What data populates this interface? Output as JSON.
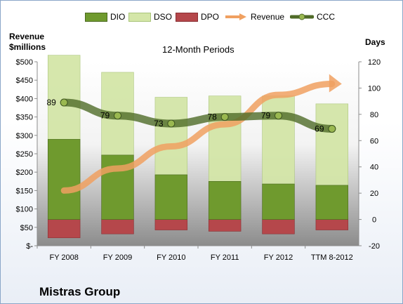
{
  "company": "Mistras Group",
  "chart_data": {
    "type": "bar",
    "title": "12-Month Periods",
    "ylabel": "Revenue\n$millions",
    "y2label": "Days",
    "categories": [
      "FY 2008",
      "FY 2009",
      "FY 2010",
      "FY 2011",
      "FY 2012",
      "TTM 8-2012"
    ],
    "ylim": [
      0,
      500
    ],
    "y_ticks": [
      "$-",
      "$50",
      "$100",
      "$150",
      "$200",
      "$250",
      "$300",
      "$350",
      "$400",
      "$450",
      "$500"
    ],
    "y2lim": [
      -20,
      120
    ],
    "y2_ticks": [
      "-20",
      "0",
      "20",
      "40",
      "60",
      "80",
      "100",
      "120"
    ],
    "series": [
      {
        "name": "DIO",
        "axis": "days",
        "color": "#6f9a2e",
        "values": [
          61,
          49,
          34,
          29,
          27,
          26
        ]
      },
      {
        "name": "DSO",
        "axis": "days",
        "color": "#d4e6a8",
        "values": [
          64,
          63,
          59,
          65,
          67,
          62
        ]
      },
      {
        "name": "DPO",
        "axis": "days",
        "color": "#b5474b",
        "values": [
          -14,
          -11,
          -8,
          -9,
          -11,
          -8
        ]
      },
      {
        "name": "Revenue",
        "axis": "revenue",
        "color": "#f0a060",
        "values": [
          150,
          210,
          270,
          330,
          410,
          440
        ]
      },
      {
        "name": "CCC",
        "axis": "days",
        "color": "#4f6b28",
        "values": [
          89,
          79,
          73,
          78,
          79,
          69
        ]
      }
    ],
    "ccc_labels": [
      "89",
      "79",
      "73",
      "78",
      "79",
      "69"
    ],
    "legend_position": "top",
    "grid": false
  }
}
